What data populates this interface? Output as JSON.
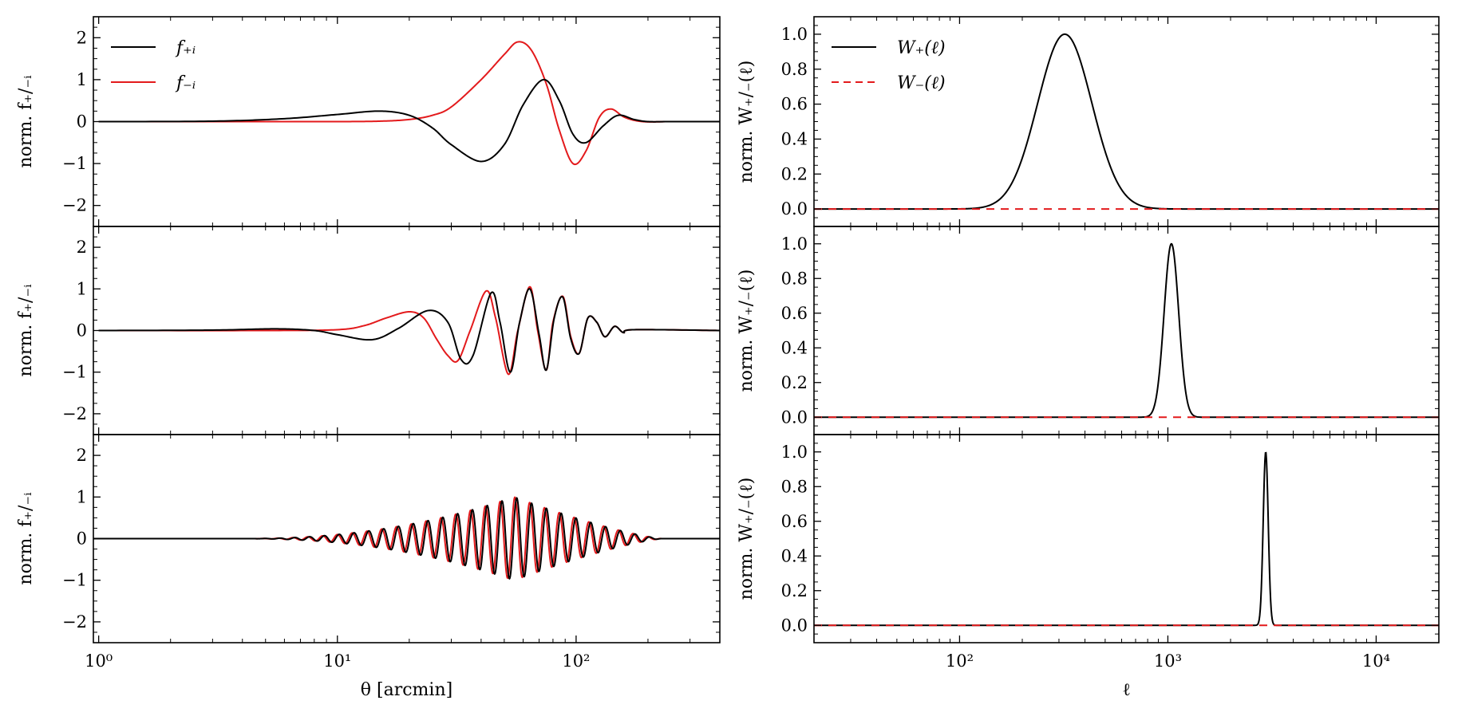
{
  "chart_data": [
    {
      "type": "line",
      "panel": "left-top",
      "xscale": "log",
      "xlim": [
        0.95,
        400
      ],
      "ylim": [
        -2.5,
        2.5
      ],
      "yticks": [
        -2,
        -1,
        0,
        1,
        2
      ],
      "ylabel": "norm. f₊/₋ᵢ",
      "xlabel": "",
      "legend": "top-left",
      "series": [
        {
          "name": "f₊ᵢ",
          "color": "#000000",
          "dash": "solid",
          "x": [
            1,
            3,
            6,
            10,
            15,
            20,
            25,
            30,
            40,
            50,
            60,
            73,
            85,
            97,
            110,
            130,
            150,
            175,
            200,
            250,
            400
          ],
          "y": [
            0,
            0.01,
            0.07,
            0.17,
            0.25,
            0.15,
            -0.15,
            -0.55,
            -0.95,
            -0.55,
            0.4,
            1.0,
            0.5,
            -0.3,
            -0.5,
            -0.1,
            0.15,
            0.05,
            0,
            0,
            0
          ]
        },
        {
          "name": "f₋ᵢ",
          "color": "#e31a1c",
          "dash": "solid",
          "x": [
            1,
            5,
            10,
            15,
            20,
            25,
            30,
            40,
            50,
            57,
            65,
            75,
            85,
            97,
            110,
            125,
            140,
            160,
            190,
            250,
            400
          ],
          "y": [
            0,
            0,
            0,
            0.01,
            0.05,
            0.15,
            0.35,
            1.0,
            1.6,
            1.9,
            1.7,
            0.9,
            -0.2,
            -1.0,
            -0.7,
            0.1,
            0.3,
            0.1,
            0,
            0,
            0
          ]
        }
      ]
    },
    {
      "type": "line",
      "panel": "left-middle",
      "xscale": "log",
      "xlim": [
        0.95,
        400
      ],
      "ylim": [
        -2.5,
        2.5
      ],
      "yticks": [
        -2,
        -1,
        0,
        1,
        2
      ],
      "ylabel": "norm. f₊/₋ᵢ",
      "xlabel": "",
      "series": [
        {
          "name": "f₊ᵢ",
          "color": "#000000",
          "dash": "solid",
          "x": [
            1,
            3,
            5.5,
            8,
            10,
            14,
            18,
            24,
            29,
            33,
            37,
            44,
            48,
            53,
            58,
            64,
            70,
            75,
            81,
            88,
            95,
            103,
            112,
            122,
            132,
            145,
            158,
            175,
            400
          ],
          "y": [
            0,
            0.01,
            0.04,
            0,
            -0.1,
            -0.22,
            0.05,
            0.48,
            0.2,
            -0.7,
            -0.6,
            0.9,
            0.2,
            -1.0,
            0.2,
            1.0,
            -0.1,
            -0.95,
            0.3,
            0.8,
            -0.2,
            -0.55,
            0.3,
            0.2,
            -0.15,
            0.1,
            -0.05,
            0.02,
            0
          ]
        },
        {
          "name": "f₋ᵢ",
          "color": "#e31a1c",
          "dash": "solid",
          "x": [
            1,
            5,
            10,
            13,
            16,
            20,
            23,
            26,
            29,
            32,
            36,
            42,
            46,
            52,
            57,
            64,
            69,
            75,
            80,
            88,
            95,
            103,
            112,
            122,
            132,
            145,
            158,
            175,
            400
          ],
          "y": [
            0,
            0,
            0.02,
            0.12,
            0.3,
            0.45,
            0.3,
            -0.2,
            -0.6,
            -0.72,
            0.0,
            0.95,
            0.3,
            -1.05,
            0.0,
            1.05,
            0.0,
            -0.95,
            0.2,
            0.82,
            -0.15,
            -0.55,
            0.3,
            0.2,
            -0.15,
            0.1,
            -0.05,
            0.02,
            0
          ]
        }
      ]
    },
    {
      "type": "line",
      "panel": "left-bottom",
      "xscale": "log",
      "xlim": [
        0.95,
        400
      ],
      "ylim": [
        -2.5,
        2.5
      ],
      "yticks": [
        -2,
        -1,
        0,
        1,
        2
      ],
      "xticks": [
        1,
        10,
        100
      ],
      "xticklabels": [
        "10⁰",
        "10¹",
        "10²"
      ],
      "ylabel": "norm. f₊/₋ᵢ",
      "xlabel": "θ [arcmin]",
      "osc": {
        "start": 4,
        "end": 230,
        "period": 0.062,
        "peak_at": 55,
        "peak_amp": 1.0,
        "red_phase": 0.02
      }
    },
    {
      "type": "line",
      "panel": "right-top",
      "xscale": "log",
      "xlim": [
        20,
        20000
      ],
      "ylim": [
        -0.1,
        1.1
      ],
      "yticks": [
        0.0,
        0.2,
        0.4,
        0.6,
        0.8,
        1.0
      ],
      "yticklabels": [
        "0.0",
        "0.2",
        "0.4",
        "0.6",
        "0.8",
        "1.0"
      ],
      "ylabel": "norm. W₊/₋(ℓ)",
      "xlabel": "",
      "legend": "top-left",
      "series": [
        {
          "name": "W₊(ℓ)",
          "color": "#000000",
          "dash": "solid",
          "peak": 320,
          "width_dex": 0.13,
          "amp": 1.0
        },
        {
          "name": "W₋(ℓ)",
          "color": "#e31a1c",
          "dash": "dashed",
          "peak": 320,
          "width_dex": 0.13,
          "amp": 0.0
        }
      ]
    },
    {
      "type": "line",
      "panel": "right-middle",
      "xscale": "log",
      "xlim": [
        20,
        20000
      ],
      "ylim": [
        -0.1,
        1.1
      ],
      "yticks": [
        0.0,
        0.2,
        0.4,
        0.6,
        0.8,
        1.0
      ],
      "yticklabels": [
        "0.0",
        "0.2",
        "0.4",
        "0.6",
        "0.8",
        "1.0"
      ],
      "ylabel": "norm. W₊/₋(ℓ)",
      "xlabel": "",
      "series": [
        {
          "name": "W₊(ℓ)",
          "color": "#000000",
          "dash": "solid",
          "peak": 1040,
          "width_dex": 0.035,
          "amp": 1.0
        },
        {
          "name": "W₋(ℓ)",
          "color": "#e31a1c",
          "dash": "dashed",
          "peak": 1040,
          "width_dex": 0.035,
          "amp": 0.0
        }
      ]
    },
    {
      "type": "line",
      "panel": "right-bottom",
      "xscale": "log",
      "xlim": [
        20,
        20000
      ],
      "ylim": [
        -0.1,
        1.1
      ],
      "yticks": [
        0.0,
        0.2,
        0.4,
        0.6,
        0.8,
        1.0
      ],
      "yticklabels": [
        "0.0",
        "0.2",
        "0.4",
        "0.6",
        "0.8",
        "1.0"
      ],
      "xticks": [
        100,
        1000,
        10000
      ],
      "xticklabels": [
        "10²",
        "10³",
        "10⁴"
      ],
      "ylabel": "norm. W₊/₋(ℓ)",
      "xlabel": "ℓ",
      "series": [
        {
          "name": "W₊(ℓ)",
          "color": "#000000",
          "dash": "solid",
          "peak": 2950,
          "width_dex": 0.012,
          "amp": 1.0
        },
        {
          "name": "W₋(ℓ)",
          "color": "#e31a1c",
          "dash": "dashed",
          "peak": 2950,
          "width_dex": 0.012,
          "amp": 0.0
        }
      ]
    }
  ]
}
